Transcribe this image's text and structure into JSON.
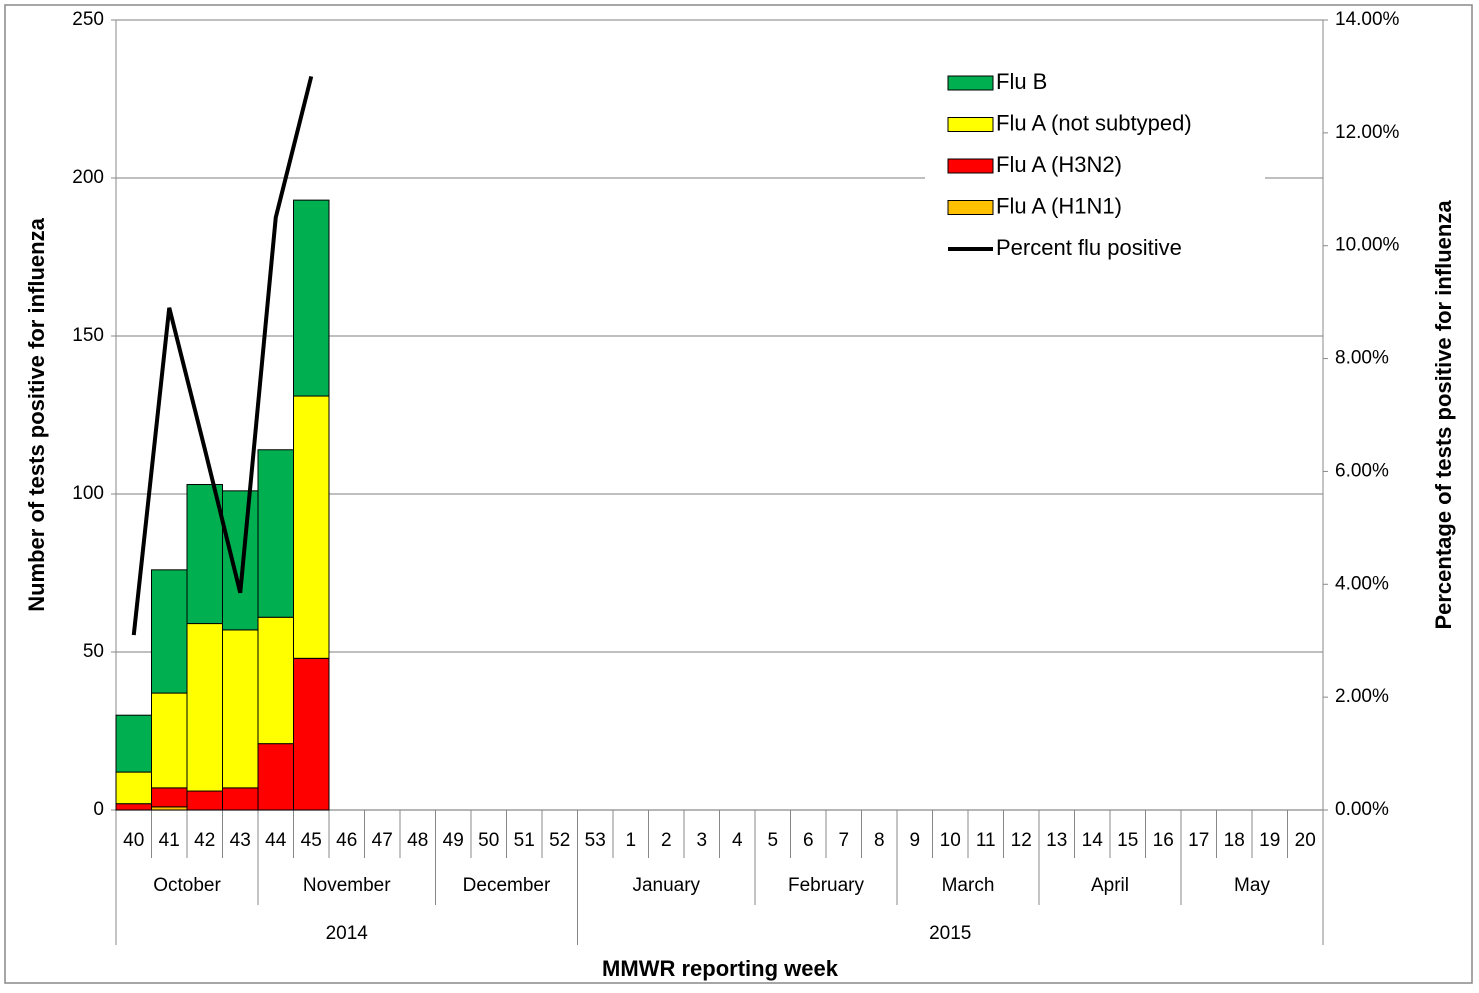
{
  "chart_data": {
    "type": "bar",
    "x_label": "MMWR reporting week",
    "y_label": "Number of tests positive for influenza",
    "y2_label": "Percentage of tests  positive for influenza",
    "categories": [
      "40",
      "41",
      "42",
      "43",
      "44",
      "45",
      "46",
      "47",
      "48",
      "49",
      "50",
      "51",
      "52",
      "53",
      "1",
      "2",
      "3",
      "4",
      "5",
      "6",
      "7",
      "8",
      "9",
      "10",
      "11",
      "12",
      "13",
      "14",
      "15",
      "16",
      "17",
      "18",
      "19",
      "20"
    ],
    "months": [
      "October",
      "October",
      "October",
      "October",
      "November",
      "November",
      "November",
      "November",
      "November",
      "December",
      "December",
      "December",
      "December",
      "January",
      "January",
      "January",
      "January",
      "January",
      "February",
      "February",
      "February",
      "February",
      "March",
      "March",
      "March",
      "March",
      "April",
      "April",
      "April",
      "April",
      "May",
      "May",
      "May",
      "May"
    ],
    "years": [
      "2014",
      "2014",
      "2014",
      "2014",
      "2014",
      "2014",
      "2014",
      "2014",
      "2014",
      "2014",
      "2014",
      "2014",
      "2014",
      "2015",
      "2015",
      "2015",
      "2015",
      "2015",
      "2015",
      "2015",
      "2015",
      "2015",
      "2015",
      "2015",
      "2015",
      "2015",
      "2015",
      "2015",
      "2015",
      "2015",
      "2015",
      "2015",
      "2015",
      "2015"
    ],
    "series": [
      {
        "name": "Flu A (H1N1)",
        "color": "#ffc000",
        "values": [
          0,
          1,
          0,
          0,
          0,
          0,
          null,
          null,
          null,
          null,
          null,
          null,
          null,
          null,
          null,
          null,
          null,
          null,
          null,
          null,
          null,
          null,
          null,
          null,
          null,
          null,
          null,
          null,
          null,
          null,
          null,
          null,
          null,
          null
        ]
      },
      {
        "name": "Flu A (H3N2)",
        "color": "#ff0000",
        "values": [
          2,
          6,
          6,
          7,
          21,
          48,
          null,
          null,
          null,
          null,
          null,
          null,
          null,
          null,
          null,
          null,
          null,
          null,
          null,
          null,
          null,
          null,
          null,
          null,
          null,
          null,
          null,
          null,
          null,
          null,
          null,
          null,
          null,
          null
        ]
      },
      {
        "name": "Flu A (not subtyped)",
        "color": "#ffff00",
        "values": [
          10,
          30,
          53,
          50,
          40,
          83,
          null,
          null,
          null,
          null,
          null,
          null,
          null,
          null,
          null,
          null,
          null,
          null,
          null,
          null,
          null,
          null,
          null,
          null,
          null,
          null,
          null,
          null,
          null,
          null,
          null,
          null,
          null,
          null
        ]
      },
      {
        "name": "Flu B",
        "color": "#00b050",
        "values": [
          18,
          39,
          44,
          44,
          53,
          62,
          null,
          null,
          null,
          null,
          null,
          null,
          null,
          null,
          null,
          null,
          null,
          null,
          null,
          null,
          null,
          null,
          null,
          null,
          null,
          null,
          null,
          null,
          null,
          null,
          null,
          null,
          null,
          null
        ]
      },
      {
        "name": "Percent flu positive",
        "color": "#000000",
        "type": "line",
        "axis": "y2",
        "values": [
          3.1,
          8.9,
          6.4,
          3.85,
          10.5,
          13.0,
          null,
          null,
          null,
          null,
          null,
          null,
          null,
          null,
          null,
          null,
          null,
          null,
          null,
          null,
          null,
          null,
          null,
          null,
          null,
          null,
          null,
          null,
          null,
          null,
          null,
          null,
          null,
          null
        ]
      }
    ],
    "ylim": [
      0,
      250
    ],
    "yticks": [
      0,
      50,
      100,
      150,
      200,
      250
    ],
    "y2lim": [
      0,
      14
    ],
    "y2ticks": [
      {
        "value": 0,
        "label": "0.00%"
      },
      {
        "value": 2,
        "label": "2.00%"
      },
      {
        "value": 4,
        "label": "4.00%"
      },
      {
        "value": 6,
        "label": "6.00%"
      },
      {
        "value": 8,
        "label": "8.00%"
      },
      {
        "value": 10,
        "label": "10.00%"
      },
      {
        "value": 12,
        "label": "12.00%"
      },
      {
        "value": 14,
        "label": "14.00%"
      }
    ],
    "grid": true,
    "legend": "upper right"
  }
}
